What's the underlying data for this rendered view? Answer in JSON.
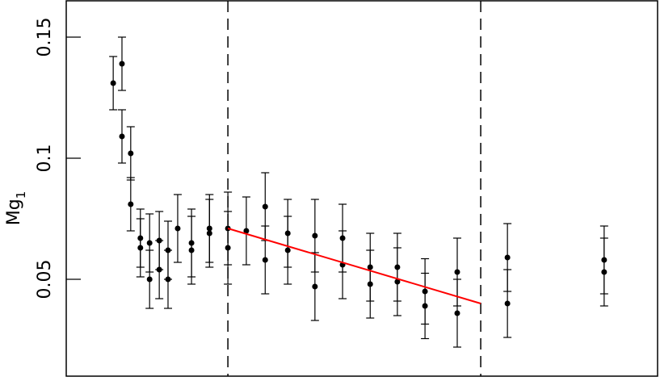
{
  "chart_data": {
    "type": "scatter",
    "ylabel": "Mg",
    "ylabel_subscript": "1",
    "ylim": [
      0.01,
      0.165
    ],
    "yticks": [
      0.05,
      0.1,
      0.15
    ],
    "xlim": [
      0,
      12.84
    ],
    "series": [
      {
        "color": "#000000",
        "x": [
          1.02,
          1.21,
          1.21,
          1.4,
          1.4,
          1.61,
          1.61,
          1.81,
          1.81,
          2.02,
          2.02,
          2.21,
          2.21,
          2.42,
          2.72,
          2.72,
          3.11,
          3.11,
          3.51,
          3.51,
          3.91,
          4.32,
          4.32,
          4.81,
          4.81,
          5.4,
          5.4,
          6.0,
          6.0,
          6.6,
          6.6,
          7.19,
          7.19,
          7.79,
          7.79,
          8.49,
          8.49,
          9.58,
          9.58,
          11.68,
          11.68
        ],
        "values": [
          0.131,
          0.139,
          0.109,
          0.102,
          0.081,
          0.067,
          0.063,
          0.065,
          0.05,
          0.066,
          0.054,
          0.062,
          0.05,
          0.071,
          0.065,
          0.062,
          0.071,
          0.069,
          0.071,
          0.063,
          0.07,
          0.08,
          0.058,
          0.069,
          0.062,
          0.068,
          0.047,
          0.067,
          0.056,
          0.055,
          0.048,
          0.055,
          0.049,
          0.045,
          0.039,
          0.053,
          0.036,
          0.059,
          0.04,
          0.058,
          0.053
        ],
        "errors": [
          0.011,
          0.011,
          0.011,
          0.011,
          0.011,
          0.012,
          0.012,
          0.012,
          0.012,
          0.012,
          0.012,
          0.012,
          0.012,
          0.014,
          0.014,
          0.014,
          0.014,
          0.014,
          0.015,
          0.015,
          0.014,
          0.014,
          0.014,
          0.014,
          0.014,
          0.015,
          0.014,
          0.014,
          0.014,
          0.014,
          0.014,
          0.014,
          0.014,
          0.0135,
          0.0135,
          0.014,
          0.014,
          0.014,
          0.014,
          0.014,
          0.014
        ]
      }
    ],
    "fit_line": {
      "color": "#ff0000",
      "x": [
        3.51,
        9.0
      ],
      "values": [
        0.071,
        0.04
      ]
    },
    "vlines": [
      3.51,
      9.0
    ]
  }
}
